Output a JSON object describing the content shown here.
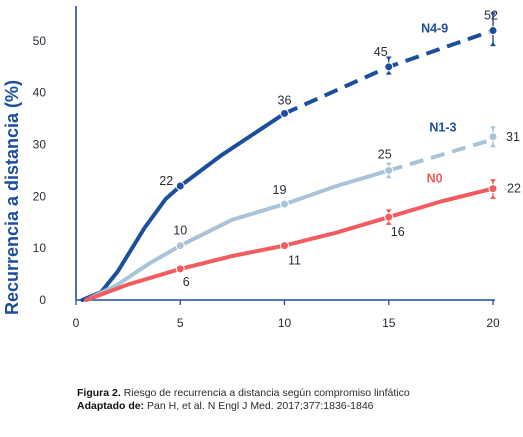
{
  "chart_data": {
    "type": "line",
    "title": "",
    "xlabel": "",
    "ylabel": "Recurrencia a distancia (%)",
    "xlim": [
      0,
      20
    ],
    "ylim": [
      0,
      55
    ],
    "x_ticks": [
      0,
      5,
      10,
      15,
      20
    ],
    "y_ticks": [
      0,
      10,
      20,
      30,
      40,
      50
    ],
    "grid": false,
    "series": [
      {
        "name": "N4-9",
        "color": "#1b4f9c",
        "solid": [
          [
            0.3,
            0
          ],
          [
            1.2,
            1.5
          ],
          [
            2,
            5.5
          ],
          [
            3.3,
            14
          ],
          [
            4.3,
            19.5
          ],
          [
            5,
            22
          ],
          [
            7,
            28
          ],
          [
            10,
            36
          ]
        ],
        "dashed": [
          [
            10,
            36
          ],
          [
            15,
            45
          ],
          [
            20,
            52
          ]
        ],
        "markers": [
          {
            "x": 5,
            "y": 22,
            "label": "22",
            "err": null
          },
          {
            "x": 10,
            "y": 36,
            "label": "36",
            "err": null
          },
          {
            "x": 15,
            "y": 45,
            "label": "45",
            "err": [
              43.5,
              47
            ]
          },
          {
            "x": 20,
            "y": 52,
            "label": "52",
            "err": [
              49,
              55.5
            ]
          }
        ]
      },
      {
        "name": "N1-3",
        "color": "#a9c4d8",
        "solid": [
          [
            0.5,
            0
          ],
          [
            2,
            3
          ],
          [
            3.5,
            7
          ],
          [
            5,
            10.5
          ],
          [
            7.5,
            15.5
          ],
          [
            10,
            18.5
          ],
          [
            12.5,
            22
          ],
          [
            15,
            25
          ]
        ],
        "dashed": [
          [
            15,
            25
          ],
          [
            20,
            31
          ]
        ],
        "markers": [
          {
            "x": 5,
            "y": 10.5,
            "label": "10",
            "err": null
          },
          {
            "x": 10,
            "y": 18.5,
            "label": "19",
            "err": null
          },
          {
            "x": 15,
            "y": 25,
            "label": "25",
            "err": [
              23.5,
              26.5
            ]
          },
          {
            "x": 20,
            "y": 31.5,
            "label": "31",
            "err": [
              29.5,
              33.5
            ]
          }
        ]
      },
      {
        "name": "N0",
        "color": "#f25c5e",
        "solid": [
          [
            0.5,
            0
          ],
          [
            2.5,
            3
          ],
          [
            5,
            6
          ],
          [
            7.5,
            8.5
          ],
          [
            10,
            10.5
          ],
          [
            12.5,
            13
          ],
          [
            15,
            16
          ],
          [
            17.5,
            19
          ],
          [
            20,
            21.5
          ]
        ],
        "dashed": [],
        "markers": [
          {
            "x": 5,
            "y": 6,
            "label": "6",
            "err": null
          },
          {
            "x": 10,
            "y": 10.5,
            "label": "11",
            "err": null
          },
          {
            "x": 15,
            "y": 16,
            "label": "16",
            "err": [
              14.5,
              17.5
            ]
          },
          {
            "x": 20,
            "y": 21.5,
            "label": "22",
            "err": [
              19.5,
              23.3
            ]
          }
        ]
      }
    ]
  },
  "caption": {
    "figure_label": "Figura 2.",
    "figure_text": "Riesgo de recurrencia a distancia según compromiso linfático",
    "source_label": "Adaptado de:",
    "source_text": "Pan H, et al. N Engl J Med. 2017;377:1836-1846"
  }
}
